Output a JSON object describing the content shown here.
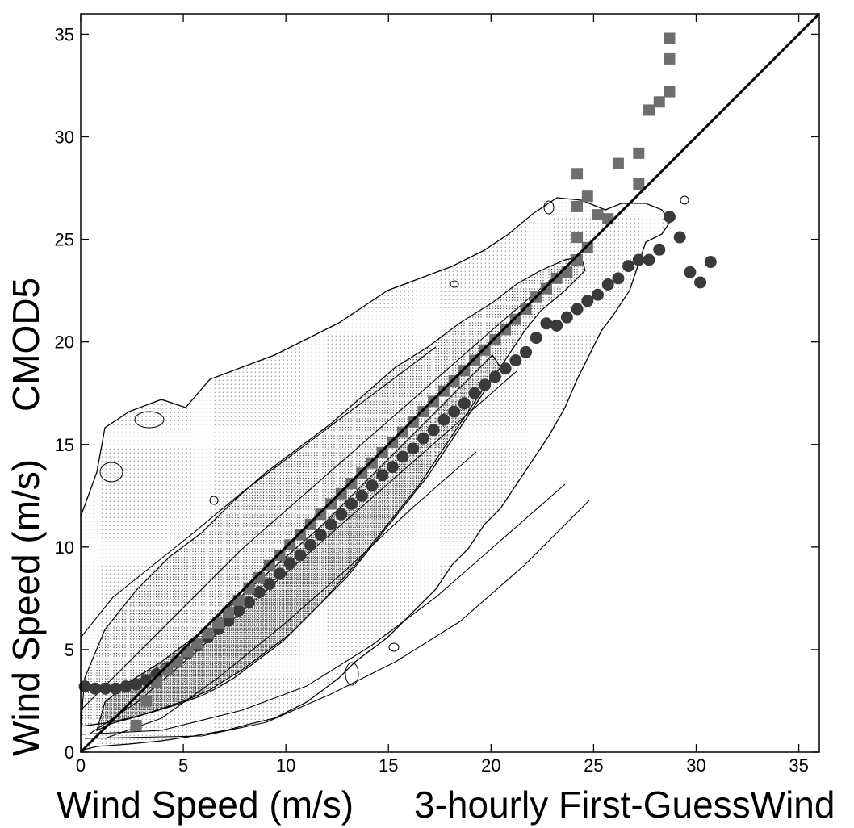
{
  "chart_data": {
    "type": "scatter",
    "title": "",
    "xlabel_left": "Wind Speed (m/s)",
    "xlabel_right": "3-hourly First-GuessWind",
    "ylabel_bottom": "Wind Speed (m/s)",
    "ylabel_top": "CMOD5",
    "xlim": [
      0,
      36
    ],
    "ylim": [
      0,
      36
    ],
    "x_ticks": [
      0,
      5,
      10,
      15,
      20,
      25,
      30,
      35
    ],
    "y_ticks": [
      0,
      5,
      10,
      15,
      20,
      25,
      30,
      35
    ],
    "grid": false,
    "reference_line": {
      "x": [
        0,
        36
      ],
      "y": [
        0,
        36
      ]
    },
    "series": [
      {
        "marker": "circle",
        "color": "#3a3a3a",
        "points": [
          [
            0.2,
            3.2
          ],
          [
            0.7,
            3.1
          ],
          [
            1.2,
            3.1
          ],
          [
            1.7,
            3.1
          ],
          [
            2.2,
            3.2
          ],
          [
            2.7,
            3.3
          ],
          [
            3.2,
            3.5
          ],
          [
            3.7,
            3.8
          ],
          [
            4.2,
            4.1
          ],
          [
            4.7,
            4.4
          ],
          [
            5.2,
            4.8
          ],
          [
            5.7,
            5.2
          ],
          [
            6.2,
            5.6
          ],
          [
            6.7,
            6.0
          ],
          [
            7.2,
            6.4
          ],
          [
            7.7,
            6.9
          ],
          [
            8.2,
            7.3
          ],
          [
            8.7,
            7.8
          ],
          [
            9.2,
            8.2
          ],
          [
            9.7,
            8.7
          ],
          [
            10.2,
            9.2
          ],
          [
            10.7,
            9.6
          ],
          [
            11.2,
            10.1
          ],
          [
            11.7,
            10.6
          ],
          [
            12.2,
            11.1
          ],
          [
            12.7,
            11.6
          ],
          [
            13.2,
            12.1
          ],
          [
            13.7,
            12.5
          ],
          [
            14.2,
            13.0
          ],
          [
            14.7,
            13.5
          ],
          [
            15.2,
            13.9
          ],
          [
            15.7,
            14.4
          ],
          [
            16.2,
            14.8
          ],
          [
            16.7,
            15.3
          ],
          [
            17.2,
            15.7
          ],
          [
            17.7,
            16.2
          ],
          [
            18.2,
            16.6
          ],
          [
            18.7,
            17.0
          ],
          [
            19.2,
            17.5
          ],
          [
            19.7,
            17.9
          ],
          [
            20.2,
            18.3
          ],
          [
            20.7,
            18.7
          ],
          [
            21.2,
            19.1
          ],
          [
            21.7,
            19.5
          ],
          [
            22.2,
            20.2
          ],
          [
            22.7,
            20.9
          ],
          [
            23.2,
            20.8
          ],
          [
            23.7,
            21.2
          ],
          [
            24.2,
            21.6
          ],
          [
            24.7,
            22.0
          ],
          [
            25.2,
            22.3
          ],
          [
            25.7,
            22.8
          ],
          [
            26.2,
            23.1
          ],
          [
            26.7,
            23.7
          ],
          [
            27.2,
            24.0
          ],
          [
            27.7,
            24.0
          ],
          [
            28.2,
            24.5
          ],
          [
            28.7,
            26.1
          ],
          [
            29.2,
            25.1
          ],
          [
            29.7,
            23.4
          ],
          [
            30.2,
            22.9
          ],
          [
            30.7,
            23.9
          ]
        ]
      },
      {
        "marker": "square",
        "color": "#6e6e6e",
        "points": [
          [
            2.7,
            1.3
          ],
          [
            3.2,
            2.5
          ],
          [
            3.7,
            3.4
          ],
          [
            4.2,
            4.0
          ],
          [
            4.7,
            4.4
          ],
          [
            5.2,
            4.9
          ],
          [
            5.7,
            5.3
          ],
          [
            6.2,
            5.8
          ],
          [
            6.7,
            6.3
          ],
          [
            7.2,
            6.8
          ],
          [
            7.7,
            7.4
          ],
          [
            8.2,
            8.0
          ],
          [
            8.7,
            8.5
          ],
          [
            9.2,
            9.1
          ],
          [
            9.7,
            9.6
          ],
          [
            10.2,
            10.1
          ],
          [
            10.7,
            10.6
          ],
          [
            11.2,
            11.1
          ],
          [
            11.7,
            11.6
          ],
          [
            12.2,
            12.1
          ],
          [
            12.7,
            12.6
          ],
          [
            13.2,
            13.1
          ],
          [
            13.7,
            13.6
          ],
          [
            14.2,
            14.1
          ],
          [
            14.7,
            14.6
          ],
          [
            15.2,
            15.1
          ],
          [
            15.7,
            15.6
          ],
          [
            16.2,
            16.1
          ],
          [
            16.7,
            16.6
          ],
          [
            17.2,
            17.1
          ],
          [
            17.7,
            17.6
          ],
          [
            18.2,
            18.1
          ],
          [
            18.7,
            18.6
          ],
          [
            19.2,
            19.1
          ],
          [
            19.7,
            19.6
          ],
          [
            20.2,
            20.1
          ],
          [
            20.7,
            20.6
          ],
          [
            21.2,
            21.1
          ],
          [
            21.7,
            21.6
          ],
          [
            22.2,
            22.2
          ],
          [
            22.7,
            22.6
          ],
          [
            23.2,
            23.1
          ],
          [
            23.7,
            23.4
          ],
          [
            24.2,
            24.0
          ],
          [
            24.7,
            24.6
          ],
          [
            24.2,
            25.1
          ],
          [
            24.2,
            26.6
          ],
          [
            24.2,
            28.2
          ],
          [
            24.7,
            27.1
          ],
          [
            25.2,
            26.2
          ],
          [
            25.7,
            26.0
          ],
          [
            26.2,
            28.7
          ],
          [
            27.2,
            27.7
          ],
          [
            27.2,
            29.2
          ],
          [
            27.7,
            31.3
          ],
          [
            28.2,
            31.7
          ],
          [
            28.7,
            32.2
          ],
          [
            28.7,
            33.8
          ],
          [
            28.7,
            34.8
          ]
        ]
      }
    ]
  }
}
